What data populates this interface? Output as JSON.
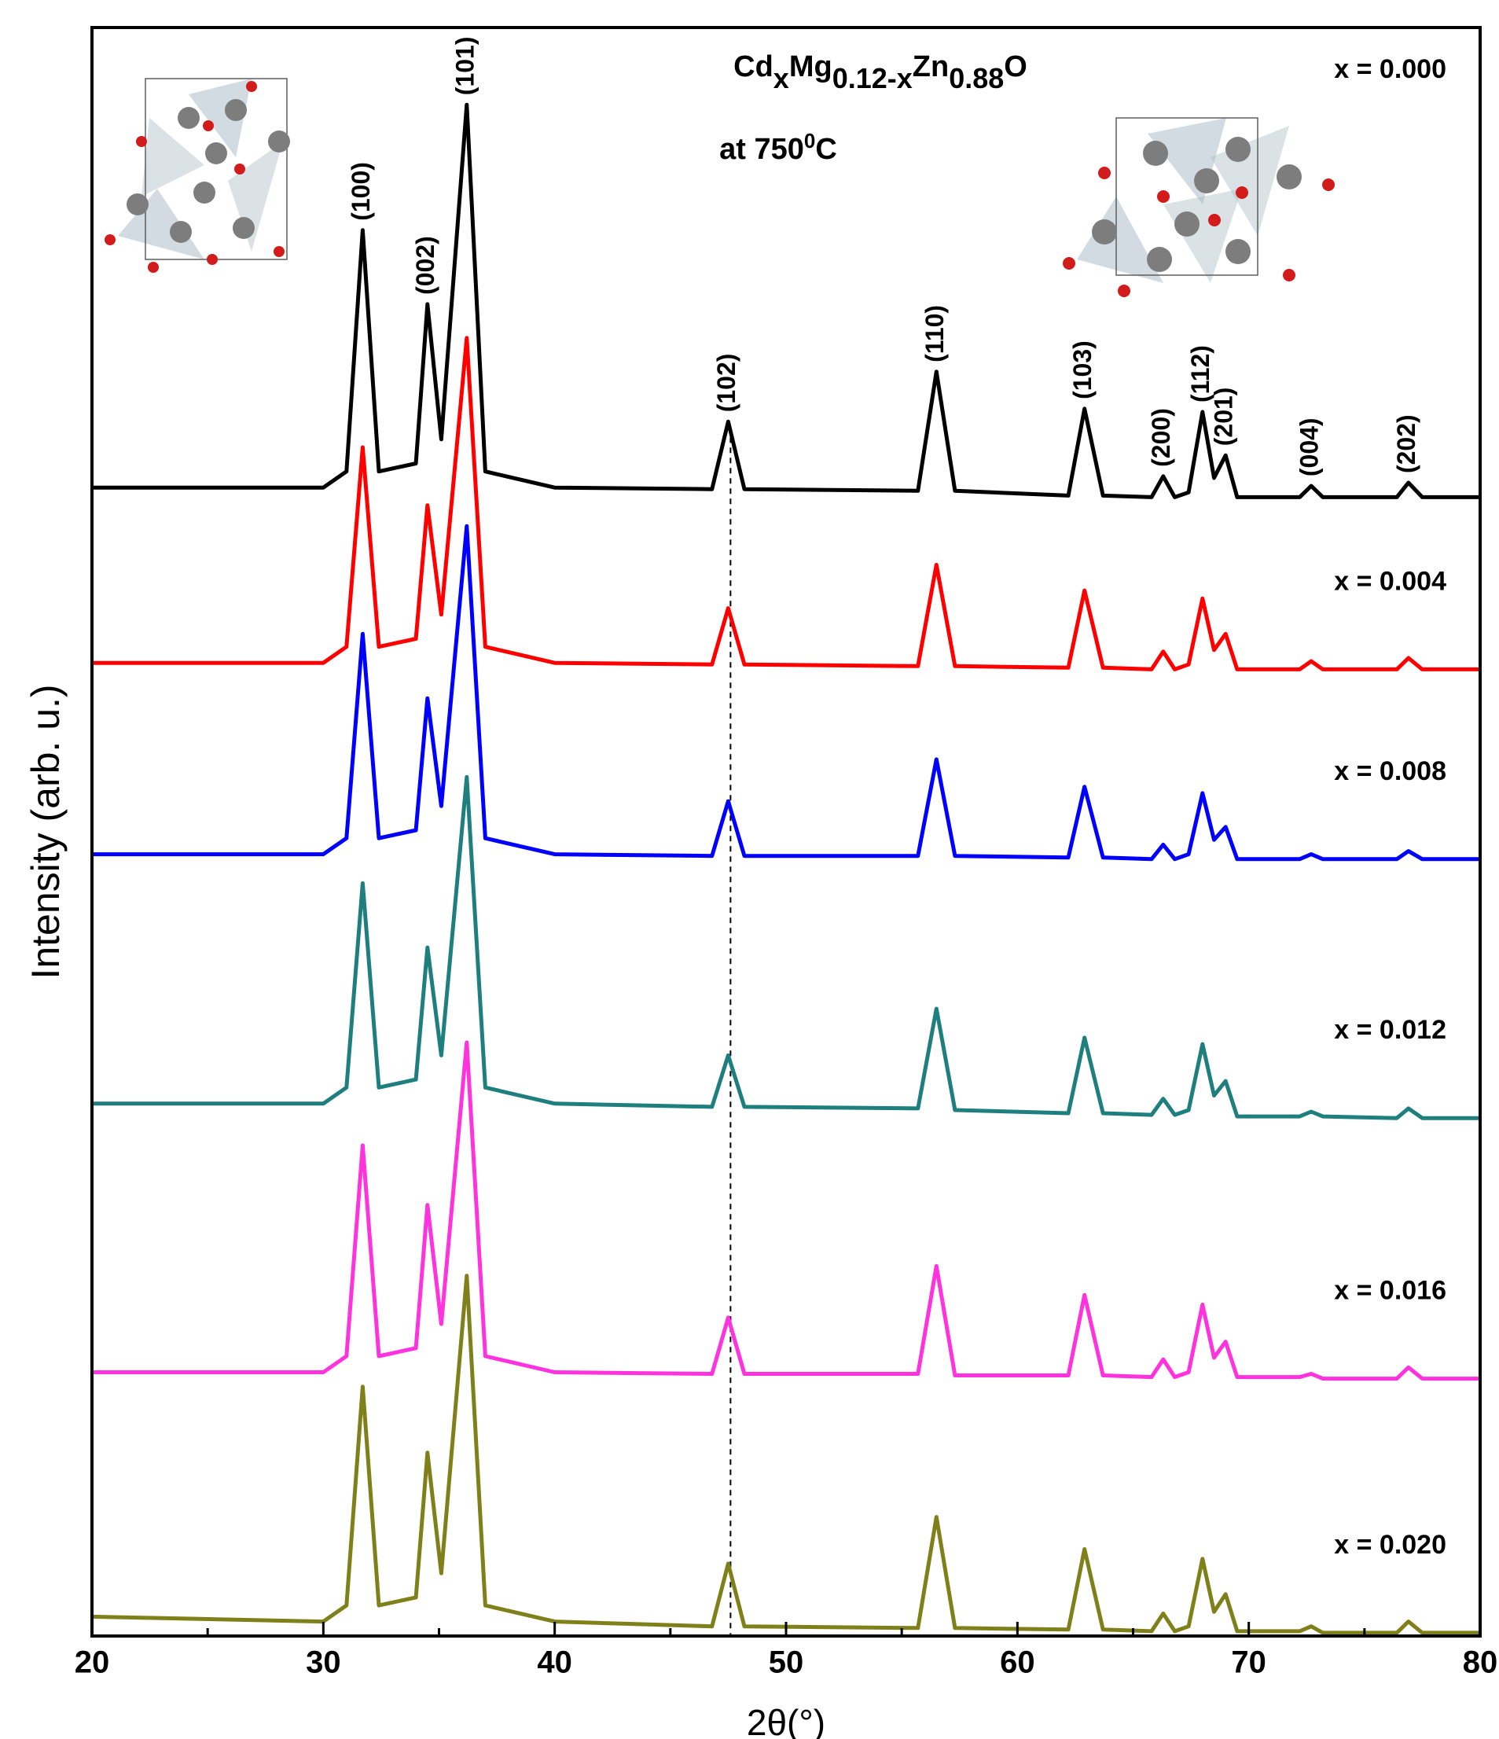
{
  "chart_data": {
    "type": "line",
    "title": [
      "Cd",
      "x",
      "Mg",
      "0.12-x",
      "Zn",
      "0.88",
      "O"
    ],
    "subtitle": [
      "at 750",
      "0",
      "C"
    ],
    "xlabel": "2θ(°)",
    "ylabel": "Intensity (arb. u.)",
    "xlim": [
      20,
      80
    ],
    "ylim": [
      0,
      100
    ],
    "xticks": [
      20,
      30,
      40,
      50,
      60,
      70,
      80
    ],
    "xminorticks": [
      25,
      35,
      45,
      55,
      65,
      75
    ],
    "reference_x": 47.6,
    "x": [
      20,
      30,
      31,
      31.7,
      32.4,
      34,
      34.5,
      35.1,
      36.2,
      37,
      40,
      46.8,
      47.5,
      48.2,
      55.7,
      56.5,
      57.3,
      62.2,
      62.9,
      63.7,
      65.8,
      66.3,
      66.8,
      67.4,
      68,
      68.5,
      69,
      69.5,
      72.2,
      72.7,
      73.2,
      76.4,
      76.9,
      77.5,
      80
    ],
    "series": [
      {
        "name": "x = 0.000",
        "color": "#000000",
        "values": [
          71.4,
          71.4,
          72.4,
          87.4,
          72.4,
          72.9,
          82.8,
          74.4,
          95.2,
          72.4,
          71.4,
          71.3,
          75.5,
          71.3,
          71.2,
          78.6,
          71.2,
          70.9,
          76.3,
          70.9,
          70.8,
          72.1,
          70.8,
          71.1,
          76.1,
          72.0,
          73.4,
          70.8,
          70.8,
          71.5,
          70.8,
          70.8,
          71.7,
          70.8,
          70.8
        ]
      },
      {
        "name": "x = 0.004",
        "color": "#ff0000",
        "values": [
          60.5,
          60.5,
          61.5,
          73.9,
          61.5,
          62.0,
          70.3,
          63.5,
          80.7,
          61.5,
          60.5,
          60.4,
          63.9,
          60.4,
          60.3,
          66.6,
          60.3,
          60.2,
          65.0,
          60.2,
          60.1,
          61.2,
          60.1,
          60.4,
          64.5,
          61.3,
          62.3,
          60.1,
          60.1,
          60.6,
          60.1,
          60.1,
          60.8,
          60.1,
          60.1
        ]
      },
      {
        "name": "x = 0.008",
        "color": "#0000ff",
        "values": [
          48.6,
          48.6,
          49.6,
          62.3,
          49.6,
          50.1,
          58.3,
          51.6,
          69.0,
          49.6,
          48.6,
          48.5,
          51.9,
          48.5,
          48.5,
          54.5,
          48.5,
          48.4,
          52.8,
          48.4,
          48.3,
          49.2,
          48.3,
          48.6,
          52.4,
          49.5,
          50.3,
          48.3,
          48.3,
          48.6,
          48.3,
          48.3,
          48.8,
          48.3,
          48.3
        ]
      },
      {
        "name": "x = 0.012",
        "color": "#1f7f7f",
        "values": [
          33.1,
          33.1,
          34.1,
          46.8,
          34.1,
          34.6,
          42.8,
          36.1,
          53.4,
          34.1,
          33.1,
          32.9,
          36.1,
          32.9,
          32.8,
          39.0,
          32.7,
          32.5,
          37.2,
          32.5,
          32.4,
          33.4,
          32.4,
          32.7,
          36.8,
          33.6,
          34.5,
          32.3,
          32.3,
          32.6,
          32.3,
          32.2,
          32.8,
          32.2,
          32.2
        ]
      },
      {
        "name": "x = 0.016",
        "color": "#ff33dd",
        "values": [
          16.4,
          16.4,
          17.4,
          30.5,
          17.4,
          17.9,
          26.8,
          19.4,
          36.9,
          17.4,
          16.4,
          16.3,
          19.8,
          16.3,
          16.3,
          23.0,
          16.2,
          16.2,
          21.2,
          16.2,
          16.1,
          17.2,
          16.1,
          16.4,
          20.6,
          17.3,
          18.3,
          16.1,
          16.1,
          16.3,
          16.0,
          16.0,
          16.7,
          16.0,
          16.0
        ]
      },
      {
        "name": "x = 0.020",
        "color": "#80801a",
        "values": [
          1.2,
          0.9,
          1.9,
          15.5,
          1.9,
          2.4,
          11.4,
          3.9,
          22.4,
          1.9,
          0.9,
          0.6,
          4.5,
          0.6,
          0.5,
          7.4,
          0.5,
          0.4,
          5.4,
          0.4,
          0.3,
          1.4,
          0.3,
          0.6,
          4.8,
          1.5,
          2.6,
          0.3,
          0.3,
          0.6,
          0.2,
          0.2,
          0.9,
          0.2,
          0.2
        ]
      }
    ],
    "peak_labels": [
      {
        "text": "(100)",
        "x": 31.7
      },
      {
        "text": "(002)",
        "x": 34.5
      },
      {
        "text": "(101)",
        "x": 36.2
      },
      {
        "text": "(102)",
        "x": 47.5
      },
      {
        "text": "(110)",
        "x": 56.5
      },
      {
        "text": "(103)",
        "x": 62.9
      },
      {
        "text": "(200)",
        "x": 66.3
      },
      {
        "text": "(112)",
        "x": 68
      },
      {
        "text": "(201)",
        "x": 69
      },
      {
        "text": "(004)",
        "x": 72.7
      },
      {
        "text": "(202)",
        "x": 76.9
      }
    ]
  }
}
